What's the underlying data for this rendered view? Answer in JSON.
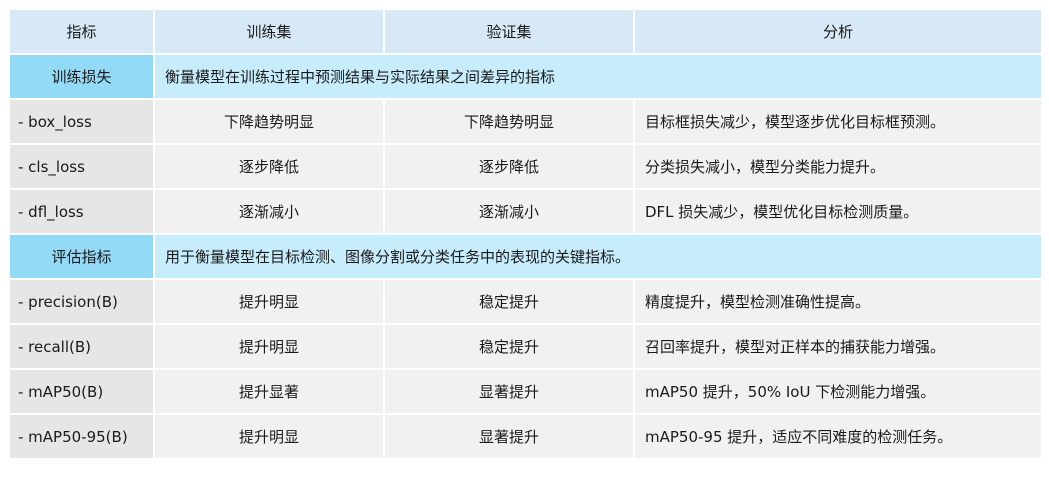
{
  "headers": [
    "指标",
    "训练集",
    "验证集",
    "分析"
  ],
  "sections": [
    {
      "label": "训练损失",
      "description": "衡量模型在训练过程中预测结果与实际结果之间差异的指标",
      "rows": [
        {
          "metric": "- box_loss",
          "train": "下降趋势明显",
          "val": "下降趋势明显",
          "analysis": "目标框损失减少，模型逐步优化目标框预测。"
        },
        {
          "metric": "- cls_loss",
          "train": "逐步降低",
          "val": "逐步降低",
          "analysis": "分类损失减小，模型分类能力提升。"
        },
        {
          "metric": "- dfl_loss",
          "train": "逐渐减小",
          "val": "逐渐减小",
          "analysis": "DFL 损失减少，模型优化目标检测质量。"
        }
      ]
    },
    {
      "label": "评估指标",
      "description": "用于衡量模型在目标检测、图像分割或分类任务中的表现的关键指标。",
      "rows": [
        {
          "metric": "- precision(B)",
          "train": "提升明显",
          "val": "稳定提升",
          "analysis": "精度提升，模型检测准确性提高。"
        },
        {
          "metric": "- recall(B)",
          "train": "提升明显",
          "val": "稳定提升",
          "analysis": "召回率提升，模型对正样本的捕获能力增强。"
        },
        {
          "metric": "- mAP50(B)",
          "train": "提升显著",
          "val": "显著提升",
          "analysis": "mAP50 提升，50% IoU 下检测能力增强。"
        },
        {
          "metric": "- mAP50-95(B)",
          "train": "提升明显",
          "val": "显著提升",
          "analysis": "mAP50-95 提升，适应不同难度的检测任务。"
        }
      ]
    }
  ]
}
